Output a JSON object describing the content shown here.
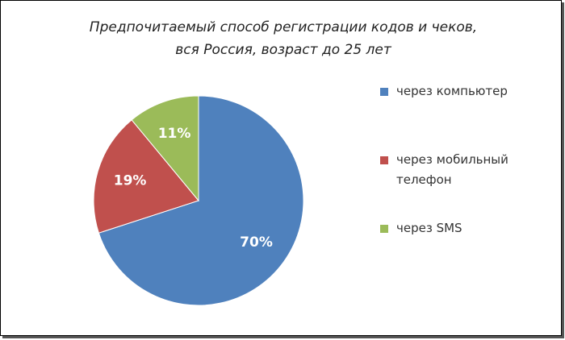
{
  "chart_data": {
    "type": "pie",
    "title": [
      "Предпочитаемый способ регистрации кодов и чеков,",
      "вся Россия, возраст до 25 лет"
    ],
    "categories": [
      "через компьютер",
      "через мобильный телефон",
      "через SMS"
    ],
    "values": [
      70,
      19,
      11
    ],
    "value_labels": [
      "70%",
      "19%",
      "11%"
    ],
    "colors": [
      "#4f81bd",
      "#c0504d",
      "#9bbb59"
    ],
    "legend": "right"
  }
}
